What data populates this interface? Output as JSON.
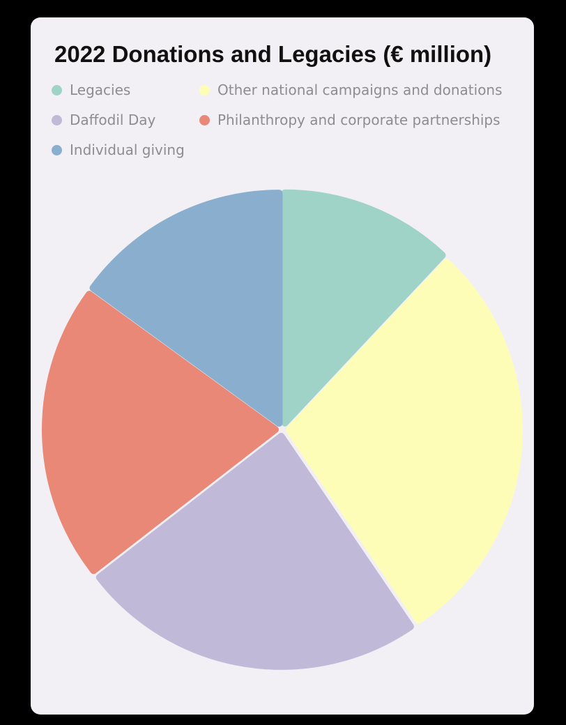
{
  "chart_data": {
    "type": "pie",
    "title": "2022 Donations and Legacies (€ million)",
    "legend_placement": "top",
    "slices": [
      {
        "label": "Legacies",
        "value": 12,
        "color": "#9fd3c7"
      },
      {
        "label": "Other national campaigns and donations",
        "value": 28.5,
        "color": "#fdfdb8"
      },
      {
        "label": "Daffodil Day",
        "value": 24,
        "color": "#c0b9d8"
      },
      {
        "label": "Philanthropy and corporate partnerships",
        "value": 20.5,
        "color": "#ea8877"
      },
      {
        "label": "Individual giving",
        "value": 15,
        "color": "#8aaece"
      }
    ]
  }
}
